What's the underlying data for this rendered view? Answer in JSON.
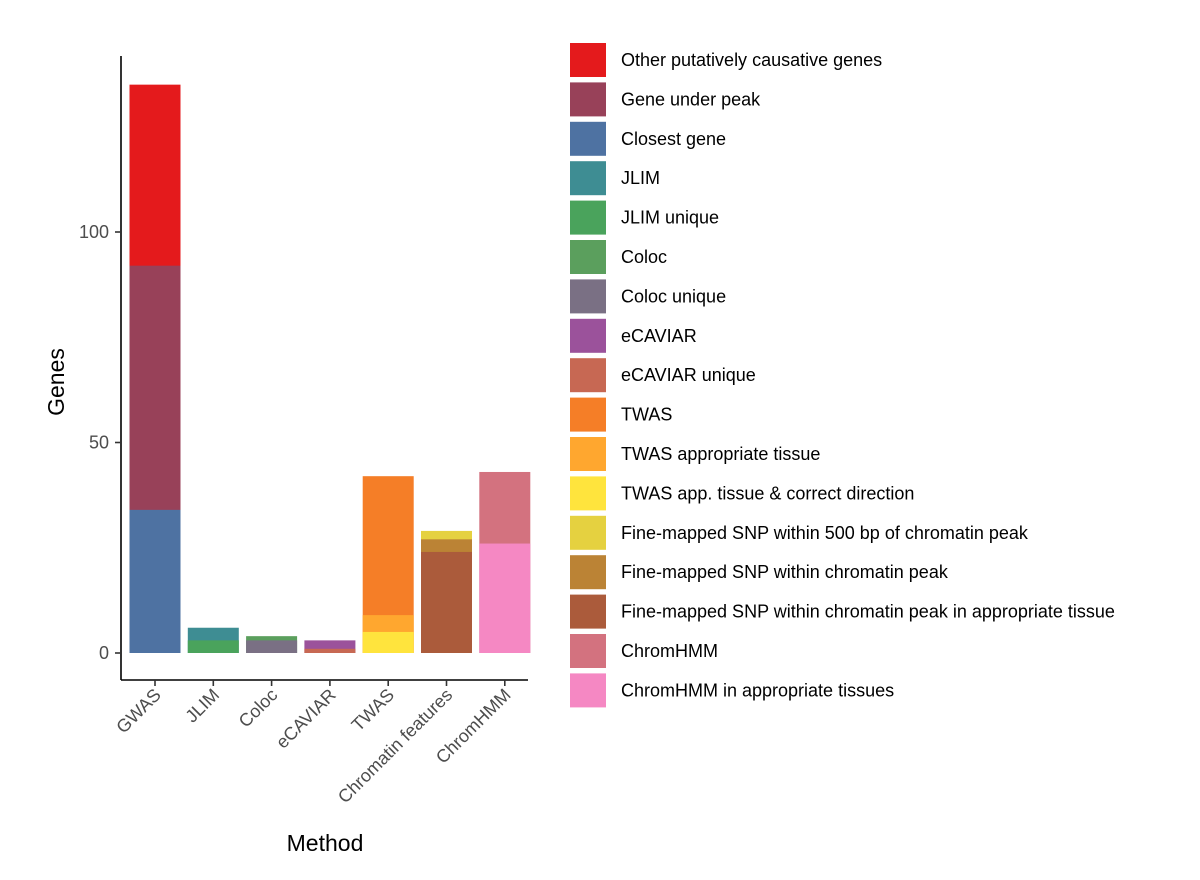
{
  "chart_data": {
    "type": "bar",
    "stacked": false,
    "overlay": true,
    "xlabel": "Method",
    "ylabel": "Genes",
    "ylim": [
      0,
      135
    ],
    "yticks": [
      0,
      50,
      100
    ],
    "grid": false,
    "legend_position": "right",
    "categories": [
      "GWAS",
      "JLIM",
      "Coloc",
      "eCAVIAR",
      "TWAS",
      "Chromatin features",
      "ChromHMM"
    ],
    "series": [
      {
        "name": "Other putatively causative genes",
        "color": "#E41A1C",
        "values": [
          135,
          null,
          null,
          null,
          null,
          null,
          null
        ]
      },
      {
        "name": "Gene under peak",
        "color": "#984159",
        "values": [
          92,
          null,
          null,
          null,
          null,
          null,
          null
        ]
      },
      {
        "name": "Closest gene",
        "color": "#4E72A2",
        "values": [
          34,
          null,
          null,
          null,
          null,
          null,
          null
        ]
      },
      {
        "name": "JLIM",
        "color": "#3E8D93",
        "values": [
          null,
          6,
          null,
          null,
          null,
          null,
          null
        ]
      },
      {
        "name": "JLIM unique",
        "color": "#4AA35C",
        "values": [
          null,
          3,
          null,
          null,
          null,
          null,
          null
        ]
      },
      {
        "name": "Coloc",
        "color": "#5B9F5D",
        "values": [
          null,
          null,
          4,
          null,
          null,
          null,
          null
        ]
      },
      {
        "name": "Coloc unique",
        "color": "#7A7084",
        "values": [
          null,
          null,
          3,
          null,
          null,
          null,
          null
        ]
      },
      {
        "name": "eCAVIAR",
        "color": "#9B529B",
        "values": [
          null,
          null,
          null,
          3,
          null,
          null,
          null
        ]
      },
      {
        "name": "eCAVIAR unique",
        "color": "#C76853",
        "values": [
          null,
          null,
          null,
          1,
          null,
          null,
          null
        ]
      },
      {
        "name": "TWAS",
        "color": "#F57E27",
        "values": [
          null,
          null,
          null,
          null,
          42,
          null,
          null
        ]
      },
      {
        "name": "TWAS appropriate tissue",
        "color": "#FFA72F",
        "values": [
          null,
          null,
          null,
          null,
          9,
          null,
          null
        ]
      },
      {
        "name": "TWAS app. tissue & correct direction",
        "color": "#FFE43D",
        "values": [
          null,
          null,
          null,
          null,
          5,
          null,
          null
        ]
      },
      {
        "name": "Fine-mapped SNP within 500 bp of chromatin peak",
        "color": "#E5D140",
        "values": [
          null,
          null,
          null,
          null,
          null,
          29,
          null
        ]
      },
      {
        "name": "Fine-mapped SNP within chromatin peak",
        "color": "#BB8335",
        "values": [
          null,
          null,
          null,
          null,
          null,
          27,
          null
        ]
      },
      {
        "name": "Fine-mapped SNP within chromatin peak in appropriate tissue",
        "color": "#AB5B3B",
        "values": [
          null,
          null,
          null,
          null,
          null,
          24,
          null
        ]
      },
      {
        "name": "ChromHMM",
        "color": "#D3727F",
        "values": [
          null,
          null,
          null,
          null,
          null,
          null,
          43
        ]
      },
      {
        "name": "ChromHMM in appropriate tissues",
        "color": "#F588C3",
        "values": [
          null,
          null,
          null,
          null,
          null,
          null,
          26
        ]
      }
    ]
  }
}
